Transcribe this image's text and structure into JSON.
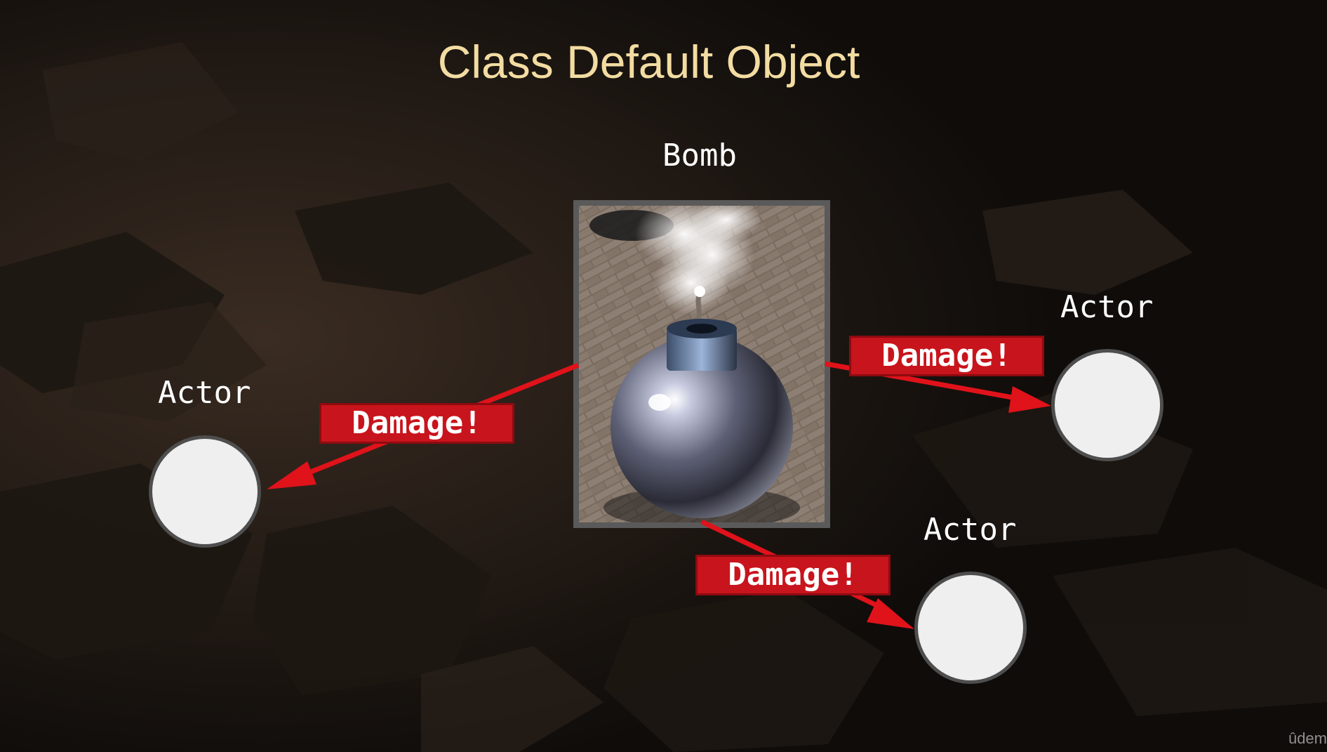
{
  "title": "Class Default Object",
  "bomb": {
    "label": "Bomb",
    "icon": "bomb-icon"
  },
  "actors": [
    {
      "label": "Actor"
    },
    {
      "label": "Actor"
    },
    {
      "label": "Actor"
    }
  ],
  "damage_labels": [
    "Damage!",
    "Damage!",
    "Damage!"
  ],
  "watermark": "ûdem",
  "colors": {
    "title": "#f3dca2",
    "arrow": "#e0121a",
    "badge": "#c8141c",
    "actor_fill": "#efefef",
    "actor_border": "#4e4e4e",
    "background": "#0f0c0a"
  }
}
